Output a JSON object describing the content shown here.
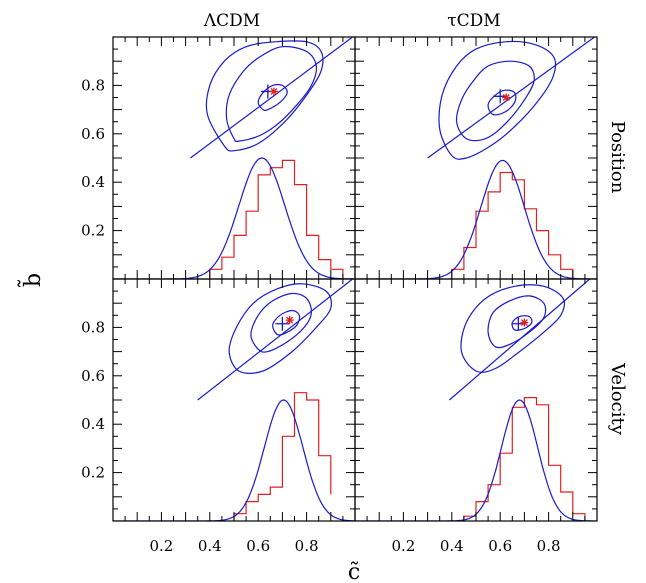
{
  "chart_data": {
    "type": "contour+histogram-grid",
    "columns": [
      "ΛCDM",
      "τCDM"
    ],
    "rows": [
      "Position",
      "Velocity"
    ],
    "xlabel": "c̃",
    "ylabel": "b̃",
    "xlim": [
      0.0,
      1.0
    ],
    "ylim": [
      0.0,
      1.0
    ],
    "xticks": [
      "0.2",
      "0.4",
      "0.6",
      "0.8"
    ],
    "yticks": [
      "0.2",
      "0.4",
      "0.6",
      "0.8"
    ],
    "colors": {
      "contour": "#1a1acc",
      "histogram": "#e02020",
      "gaussian": "#1a1acc",
      "frame": "#000000"
    },
    "panels": [
      {
        "column": "ΛCDM",
        "row": "Position",
        "blue_cross": [
          0.64,
          0.775
        ],
        "red_star": [
          0.665,
          0.775
        ],
        "line": {
          "from": [
            0.32,
            0.5
          ],
          "to": [
            0.99,
            1.0
          ]
        },
        "contour_inner": [
          [
            0.62,
            0.7
          ],
          [
            0.6,
            0.73
          ],
          [
            0.62,
            0.77
          ],
          [
            0.66,
            0.8
          ],
          [
            0.7,
            0.8
          ],
          [
            0.72,
            0.77
          ],
          [
            0.69,
            0.73
          ],
          [
            0.64,
            0.7
          ],
          [
            0.62,
            0.7
          ]
        ],
        "contour_outer": [
          [
            0.5,
            0.58
          ],
          [
            0.47,
            0.66
          ],
          [
            0.48,
            0.76
          ],
          [
            0.54,
            0.86
          ],
          [
            0.61,
            0.92
          ],
          [
            0.7,
            0.96
          ],
          [
            0.8,
            0.94
          ],
          [
            0.84,
            0.88
          ],
          [
            0.82,
            0.8
          ],
          [
            0.76,
            0.72
          ],
          [
            0.68,
            0.64
          ],
          [
            0.6,
            0.59
          ],
          [
            0.52,
            0.57
          ],
          [
            0.5,
            0.58
          ]
        ],
        "contour_big": [
          [
            0.46,
            0.55
          ],
          [
            0.39,
            0.68
          ],
          [
            0.4,
            0.8
          ],
          [
            0.46,
            0.9
          ],
          [
            0.55,
            0.96
          ],
          [
            0.67,
            0.98
          ],
          [
            0.8,
            0.98
          ],
          [
            0.86,
            0.94
          ],
          [
            0.86,
            0.86
          ],
          [
            0.8,
            0.76
          ],
          [
            0.71,
            0.65
          ],
          [
            0.6,
            0.56
          ],
          [
            0.5,
            0.53
          ],
          [
            0.46,
            0.55
          ]
        ],
        "hist_edges": [
          0.4,
          0.45,
          0.5,
          0.55,
          0.6,
          0.65,
          0.7,
          0.75,
          0.8,
          0.85,
          0.9,
          0.95
        ],
        "hist_heights": [
          0.04,
          0.09,
          0.18,
          0.28,
          0.43,
          0.46,
          0.49,
          0.39,
          0.18,
          0.08,
          0.04
        ],
        "gauss": {
          "mean": 0.615,
          "sigma": 0.095,
          "peak": 0.5
        }
      },
      {
        "column": "τCDM",
        "row": "Position",
        "blue_cross": [
          0.6,
          0.755
        ],
        "red_star": [
          0.625,
          0.75
        ],
        "line": {
          "from": [
            0.3,
            0.5
          ],
          "to": [
            0.99,
            1.0
          ]
        },
        "contour_inner": [
          [
            0.57,
            0.68
          ],
          [
            0.55,
            0.72
          ],
          [
            0.58,
            0.76
          ],
          [
            0.62,
            0.78
          ],
          [
            0.66,
            0.77
          ],
          [
            0.66,
            0.73
          ],
          [
            0.62,
            0.69
          ],
          [
            0.57,
            0.68
          ]
        ],
        "contour_outer": [
          [
            0.46,
            0.58
          ],
          [
            0.42,
            0.65
          ],
          [
            0.44,
            0.74
          ],
          [
            0.49,
            0.82
          ],
          [
            0.55,
            0.88
          ],
          [
            0.64,
            0.9
          ],
          [
            0.72,
            0.88
          ],
          [
            0.74,
            0.82
          ],
          [
            0.7,
            0.74
          ],
          [
            0.62,
            0.64
          ],
          [
            0.54,
            0.58
          ],
          [
            0.46,
            0.58
          ]
        ],
        "contour_big": [
          [
            0.4,
            0.51
          ],
          [
            0.35,
            0.62
          ],
          [
            0.36,
            0.76
          ],
          [
            0.42,
            0.88
          ],
          [
            0.5,
            0.95
          ],
          [
            0.62,
            0.98
          ],
          [
            0.74,
            0.97
          ],
          [
            0.82,
            0.92
          ],
          [
            0.82,
            0.84
          ],
          [
            0.76,
            0.74
          ],
          [
            0.66,
            0.63
          ],
          [
            0.56,
            0.55
          ],
          [
            0.46,
            0.5
          ],
          [
            0.4,
            0.51
          ]
        ],
        "hist_edges": [
          0.4,
          0.45,
          0.5,
          0.55,
          0.6,
          0.65,
          0.7,
          0.75,
          0.8,
          0.85,
          0.9
        ],
        "hist_heights": [
          0.04,
          0.13,
          0.28,
          0.36,
          0.44,
          0.41,
          0.29,
          0.2,
          0.1,
          0.04
        ],
        "gauss": {
          "mean": 0.61,
          "sigma": 0.09,
          "peak": 0.49
        }
      },
      {
        "column": "ΛCDM",
        "row": "Velocity",
        "blue_cross": [
          0.7,
          0.815
        ],
        "red_star": [
          0.73,
          0.83
        ],
        "line": {
          "from": [
            0.35,
            0.5
          ],
          "to": [
            0.99,
            1.0
          ]
        },
        "contour_inner": [
          [
            0.68,
            0.77
          ],
          [
            0.66,
            0.81
          ],
          [
            0.69,
            0.85
          ],
          [
            0.74,
            0.87
          ],
          [
            0.77,
            0.85
          ],
          [
            0.76,
            0.81
          ],
          [
            0.72,
            0.78
          ],
          [
            0.68,
            0.77
          ]
        ],
        "contour_outer": [
          [
            0.6,
            0.71
          ],
          [
            0.57,
            0.77
          ],
          [
            0.6,
            0.85
          ],
          [
            0.66,
            0.91
          ],
          [
            0.74,
            0.94
          ],
          [
            0.8,
            0.92
          ],
          [
            0.82,
            0.86
          ],
          [
            0.79,
            0.8
          ],
          [
            0.72,
            0.74
          ],
          [
            0.64,
            0.7
          ],
          [
            0.6,
            0.71
          ]
        ],
        "contour_big": [
          [
            0.52,
            0.62
          ],
          [
            0.48,
            0.7
          ],
          [
            0.51,
            0.8
          ],
          [
            0.58,
            0.9
          ],
          [
            0.68,
            0.96
          ],
          [
            0.78,
            0.98
          ],
          [
            0.88,
            0.95
          ],
          [
            0.9,
            0.88
          ],
          [
            0.84,
            0.8
          ],
          [
            0.74,
            0.7
          ],
          [
            0.62,
            0.62
          ],
          [
            0.52,
            0.62
          ]
        ],
        "hist_edges": [
          0.5,
          0.55,
          0.6,
          0.65,
          0.7,
          0.75,
          0.8,
          0.85,
          0.9
        ],
        "hist_heights": [
          0.03,
          0.08,
          0.11,
          0.14,
          0.35,
          0.53,
          0.5,
          0.27,
          0.11
        ],
        "gauss": {
          "mean": 0.705,
          "sigma": 0.08,
          "peak": 0.5
        }
      },
      {
        "column": "τCDM",
        "row": "Velocity",
        "blue_cross": [
          0.675,
          0.815
        ],
        "red_star": [
          0.7,
          0.82
        ],
        "line": {
          "from": [
            0.39,
            0.5
          ],
          "to": [
            0.97,
            1.0
          ]
        },
        "contour_inner": [
          [
            0.66,
            0.79
          ],
          [
            0.65,
            0.82
          ],
          [
            0.68,
            0.845
          ],
          [
            0.72,
            0.845
          ],
          [
            0.73,
            0.82
          ],
          [
            0.7,
            0.795
          ],
          [
            0.66,
            0.79
          ]
        ],
        "contour_outer": [
          [
            0.58,
            0.72
          ],
          [
            0.55,
            0.78
          ],
          [
            0.57,
            0.86
          ],
          [
            0.64,
            0.91
          ],
          [
            0.72,
            0.93
          ],
          [
            0.78,
            0.9
          ],
          [
            0.78,
            0.84
          ],
          [
            0.72,
            0.78
          ],
          [
            0.64,
            0.73
          ],
          [
            0.58,
            0.72
          ]
        ],
        "contour_big": [
          [
            0.5,
            0.62
          ],
          [
            0.44,
            0.7
          ],
          [
            0.46,
            0.82
          ],
          [
            0.54,
            0.92
          ],
          [
            0.66,
            0.97
          ],
          [
            0.78,
            0.97
          ],
          [
            0.86,
            0.92
          ],
          [
            0.85,
            0.85
          ],
          [
            0.78,
            0.78
          ],
          [
            0.68,
            0.7
          ],
          [
            0.58,
            0.63
          ],
          [
            0.5,
            0.62
          ]
        ],
        "hist_edges": [
          0.45,
          0.5,
          0.55,
          0.6,
          0.65,
          0.7,
          0.75,
          0.8,
          0.85,
          0.9,
          0.95
        ],
        "hist_heights": [
          0.02,
          0.08,
          0.15,
          0.28,
          0.47,
          0.51,
          0.48,
          0.23,
          0.12,
          0.03
        ],
        "gauss": {
          "mean": 0.68,
          "sigma": 0.075,
          "peak": 0.5
        }
      }
    ]
  }
}
